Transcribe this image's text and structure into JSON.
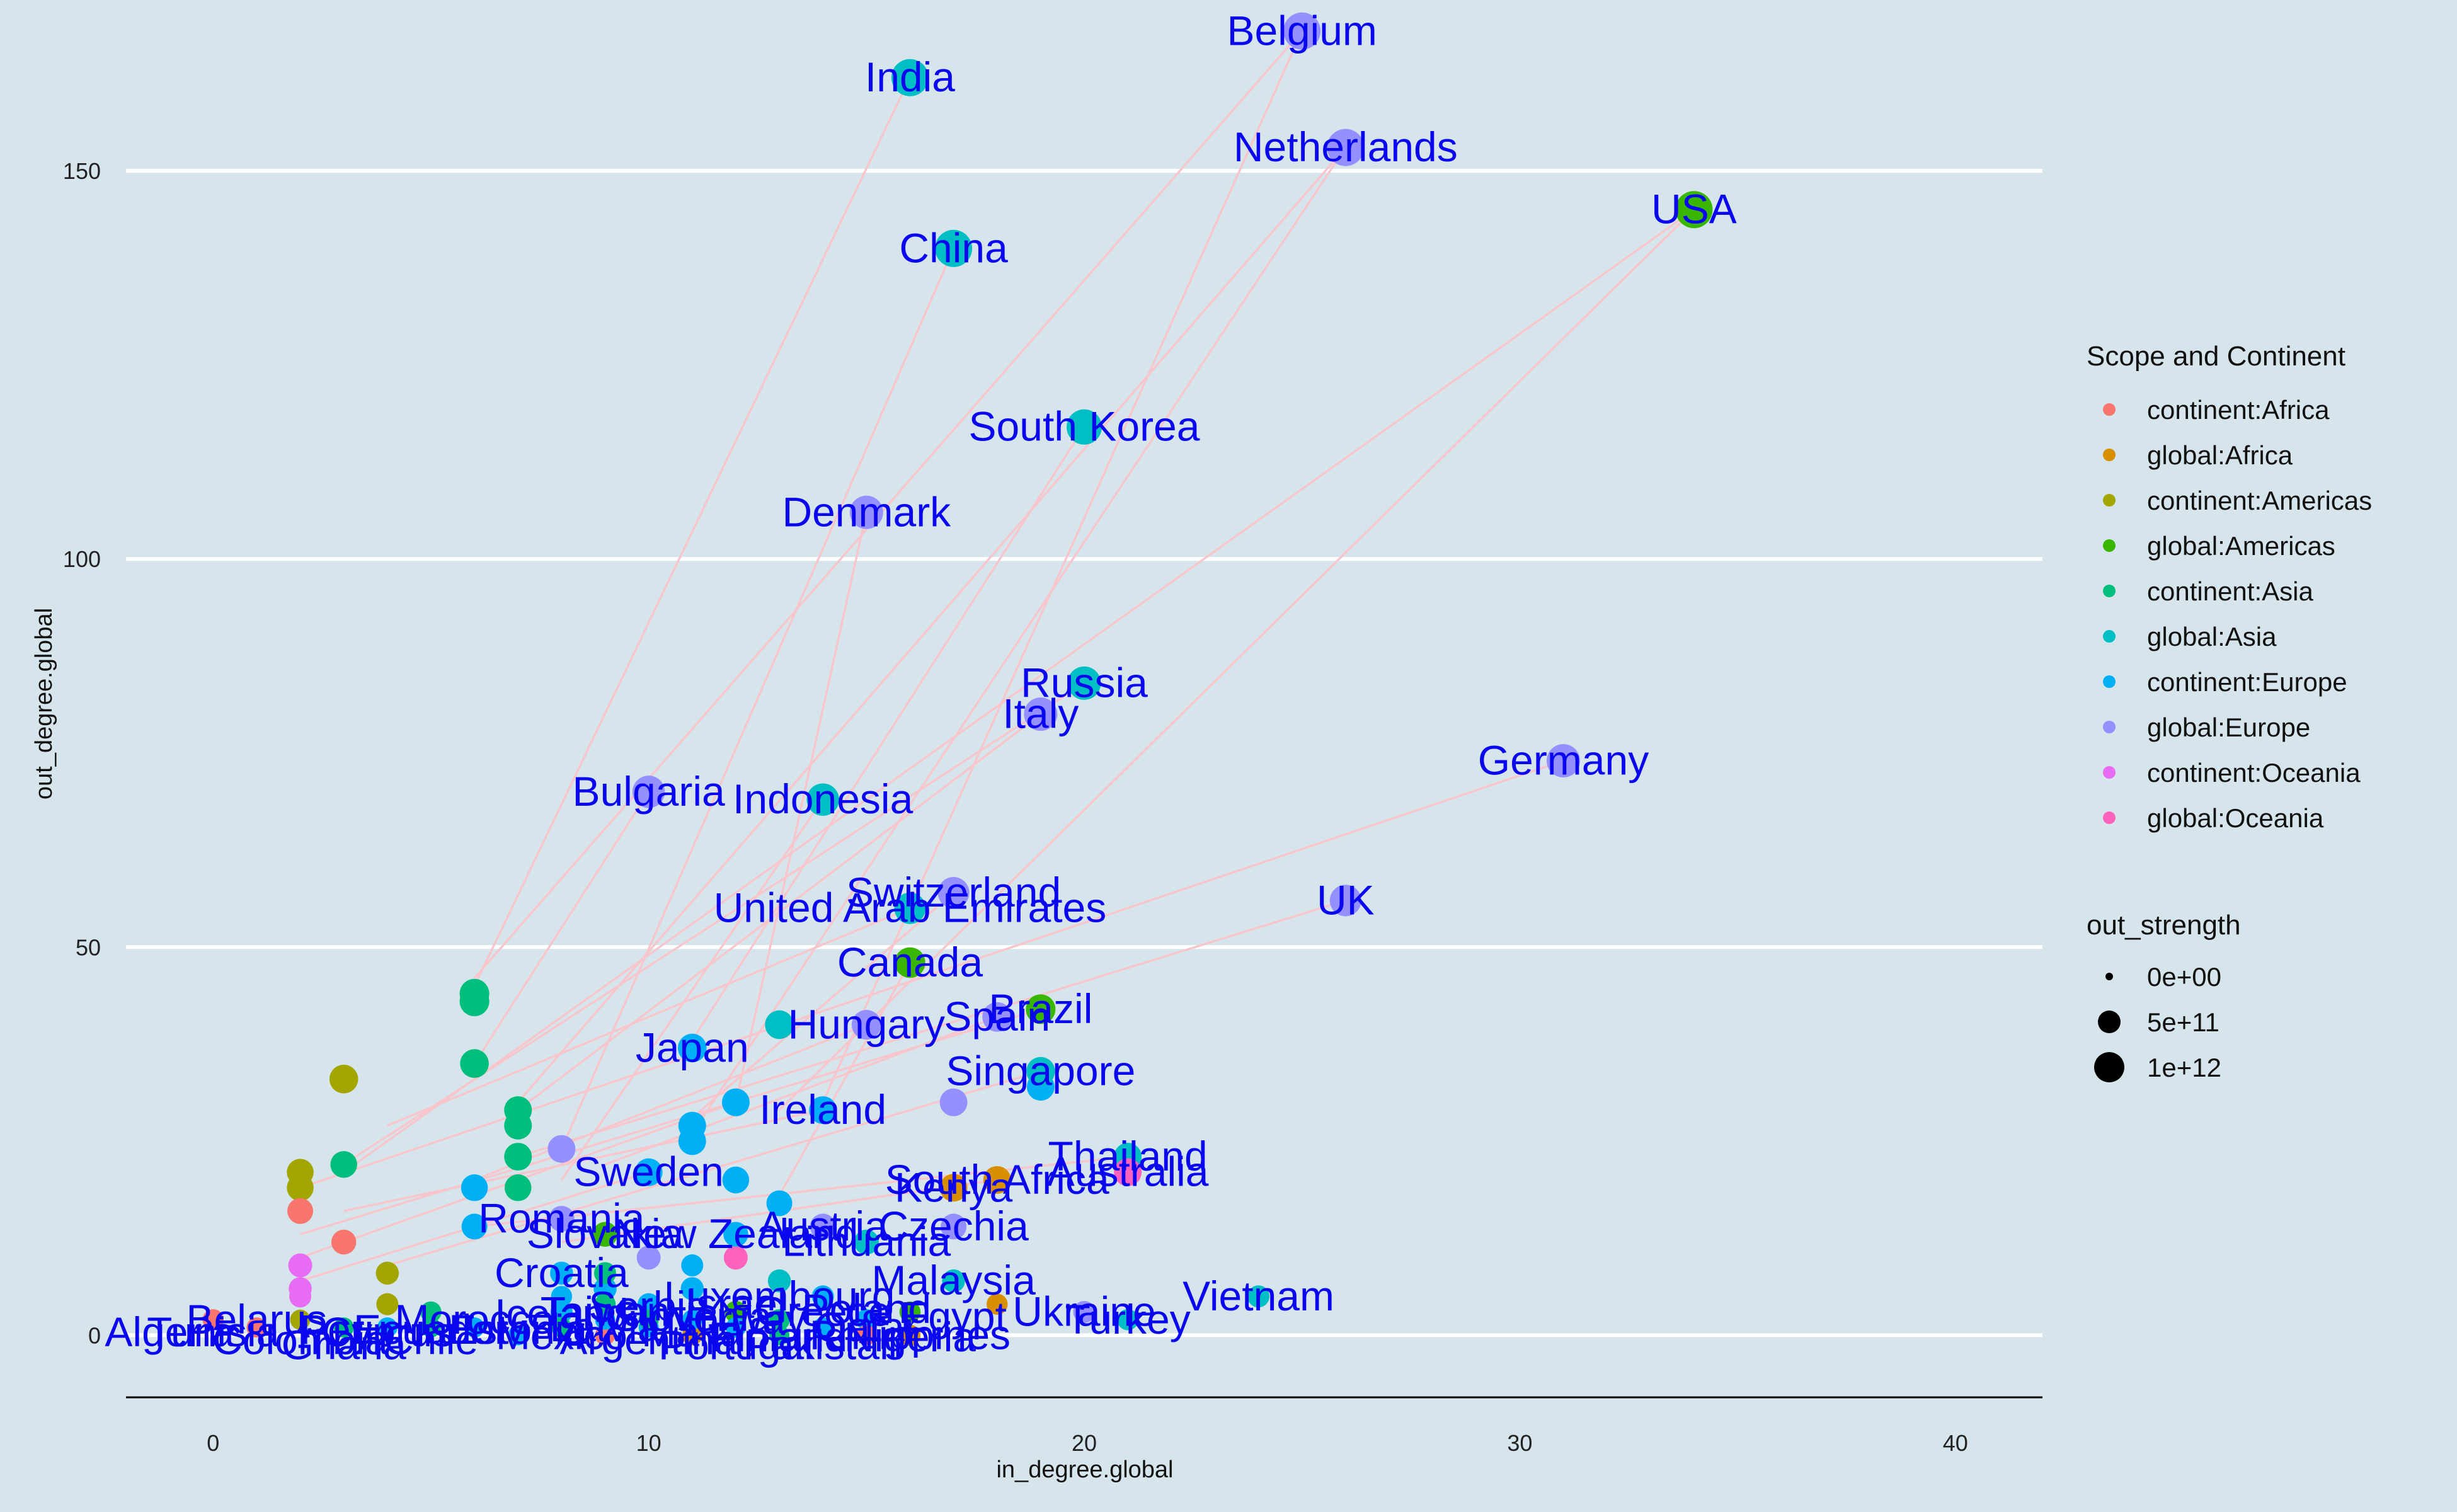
{
  "chart_data": {
    "type": "scatter",
    "xlabel": "in_degree.global",
    "ylabel": "out_degree.global",
    "xlim": [
      -2,
      42
    ],
    "ylim": [
      -8,
      172
    ],
    "x_ticks": [
      0,
      10,
      20,
      30,
      40
    ],
    "y_ticks": [
      0,
      50,
      100,
      150
    ],
    "grid": "horizontal major lines only",
    "legend_placement": "right",
    "colors": {
      "background": "#d6e5ec",
      "grid": "#ffffff",
      "edges": "#f7c6cc",
      "labels": "#0a06ee",
      "continent:Africa": "#f8766d",
      "global:Africa": "#d89000",
      "continent:Americas": "#a3a500",
      "global:Americas": "#39b600",
      "continent:Asia": "#00bf7d",
      "global:Asia": "#00bfc4",
      "continent:Europe": "#00b0f6",
      "global:Europe": "#9590ff",
      "continent:Oceania": "#e76bf3",
      "global:Oceania": "#ff62bc"
    },
    "legend_color": {
      "title": "Scope and Continent",
      "entries": [
        "continent:Africa",
        "global:Africa",
        "continent:Americas",
        "global:Americas",
        "continent:Asia",
        "global:Asia",
        "continent:Europe",
        "global:Europe",
        "continent:Oceania",
        "global:Oceania"
      ]
    },
    "legend_size": {
      "title": "out_strength",
      "entries": [
        "0e+00",
        "5e+11",
        "1e+12"
      ]
    },
    "labeled_points": [
      {
        "label": "Belgium",
        "x": 25,
        "y": 168,
        "group": "global:Europe",
        "size": 3
      },
      {
        "label": "India",
        "x": 16,
        "y": 162,
        "group": "global:Asia",
        "size": 3
      },
      {
        "label": "Netherlands",
        "x": 26,
        "y": 153,
        "group": "global:Europe",
        "size": 3
      },
      {
        "label": "USA",
        "x": 34,
        "y": 145,
        "group": "global:Americas",
        "size": 3
      },
      {
        "label": "China",
        "x": 17,
        "y": 140,
        "group": "global:Asia",
        "size": 3
      },
      {
        "label": "South Korea",
        "x": 20,
        "y": 117,
        "group": "global:Asia",
        "size": 2.8
      },
      {
        "label": "Denmark",
        "x": 15,
        "y": 106,
        "group": "global:Europe",
        "size": 2.6
      },
      {
        "label": "Russia",
        "x": 20,
        "y": 84,
        "group": "global:Asia",
        "size": 2.6
      },
      {
        "label": "Italy",
        "x": 19,
        "y": 80,
        "group": "global:Europe",
        "size": 2.6
      },
      {
        "label": "Germany",
        "x": 31,
        "y": 74,
        "group": "global:Europe",
        "size": 2.6
      },
      {
        "label": "Bulgaria",
        "x": 10,
        "y": 70,
        "group": "global:Europe",
        "size": 2.5
      },
      {
        "label": "Indonesia",
        "x": 14,
        "y": 69,
        "group": "global:Asia",
        "size": 2.5
      },
      {
        "label": "Switzerland",
        "x": 17,
        "y": 57,
        "group": "global:Europe",
        "size": 2.4
      },
      {
        "label": "United Arab Emirates",
        "x": 16,
        "y": 55,
        "group": "global:Asia",
        "size": 2.4
      },
      {
        "label": "UK",
        "x": 26,
        "y": 56,
        "group": "global:Europe",
        "size": 2.4
      },
      {
        "label": "Canada",
        "x": 16,
        "y": 48,
        "group": "global:Americas",
        "size": 2.3
      },
      {
        "label": "Brazil",
        "x": 19,
        "y": 42,
        "group": "global:Americas",
        "size": 2.2
      },
      {
        "label": "Spain",
        "x": 18,
        "y": 41,
        "group": "global:Europe",
        "size": 2.2
      },
      {
        "label": "Hungary",
        "x": 15,
        "y": 40,
        "group": "global:Europe",
        "size": 2.2
      },
      {
        "label": "Japan",
        "x": 11,
        "y": 37,
        "group": "continent:Europe",
        "size": 2.1
      },
      {
        "label": "Singapore",
        "x": 19,
        "y": 34,
        "group": "global:Asia",
        "size": 2.1
      },
      {
        "label": "Ireland",
        "x": 14,
        "y": 29,
        "group": "continent:Europe",
        "size": 2
      },
      {
        "label": "Thailand",
        "x": 21,
        "y": 23,
        "group": "global:Asia",
        "size": 2
      },
      {
        "label": "South Africa",
        "x": 18,
        "y": 20,
        "group": "global:Africa",
        "size": 2
      },
      {
        "label": "Australia",
        "x": 21,
        "y": 21,
        "group": "global:Oceania",
        "size": 2
      },
      {
        "label": "Sweden",
        "x": 10,
        "y": 21,
        "group": "continent:Europe",
        "size": 2
      },
      {
        "label": "Kenya",
        "x": 17,
        "y": 19,
        "group": "global:Africa",
        "size": 2
      },
      {
        "label": "Romania",
        "x": 8,
        "y": 15,
        "group": "global:Europe",
        "size": 1.8
      },
      {
        "label": "Austria",
        "x": 14,
        "y": 14,
        "group": "global:Europe",
        "size": 1.8
      },
      {
        "label": "Czechia",
        "x": 17,
        "y": 14,
        "group": "global:Europe",
        "size": 1.8
      },
      {
        "label": "New Zealand",
        "x": 12,
        "y": 13,
        "group": "continent:Europe",
        "size": 1.7
      },
      {
        "label": "Slovakia",
        "x": 9,
        "y": 13,
        "group": "global:Americas",
        "size": 1.7
      },
      {
        "label": "Lithuania",
        "x": 15,
        "y": 12,
        "group": "global:Asia",
        "size": 1.7
      },
      {
        "label": "Malaysia",
        "x": 17,
        "y": 7,
        "group": "global:Asia",
        "size": 1.5
      },
      {
        "label": "Croatia",
        "x": 8,
        "y": 8,
        "group": "continent:Europe",
        "size": 1.5
      },
      {
        "label": "Vietnam",
        "x": 24,
        "y": 5,
        "group": "global:Asia",
        "size": 1.4
      },
      {
        "label": "Ukraine",
        "x": 20,
        "y": 3,
        "group": "global:Europe",
        "size": 1.4
      },
      {
        "label": "Turkey",
        "x": 21,
        "y": 2,
        "group": "global:Asia",
        "size": 1.3
      },
      {
        "label": "Philippines",
        "x": 16,
        "y": 0,
        "group": "global:Africa",
        "size": 1.3
      }
    ],
    "other_points": [
      {
        "x": 6,
        "y": 44,
        "group": "continent:Asia",
        "size": 2.2
      },
      {
        "x": 6,
        "y": 43,
        "group": "continent:Asia",
        "size": 2.2
      },
      {
        "x": 6,
        "y": 35,
        "group": "continent:Asia",
        "size": 2.1
      },
      {
        "x": 3,
        "y": 33,
        "group": "continent:Americas",
        "size": 2.1
      },
      {
        "x": 7,
        "y": 29,
        "group": "continent:Asia",
        "size": 2
      },
      {
        "x": 7,
        "y": 27,
        "group": "continent:Asia",
        "size": 2
      },
      {
        "x": 11,
        "y": 27,
        "group": "continent:Europe",
        "size": 2
      },
      {
        "x": 12,
        "y": 30,
        "group": "continent:Europe",
        "size": 2
      },
      {
        "x": 11,
        "y": 25,
        "group": "continent:Europe",
        "size": 2
      },
      {
        "x": 13,
        "y": 40,
        "group": "global:Asia",
        "size": 2.1
      },
      {
        "x": 19,
        "y": 32,
        "group": "continent:Europe",
        "size": 2
      },
      {
        "x": 17,
        "y": 30,
        "group": "global:Europe",
        "size": 2
      },
      {
        "x": 8,
        "y": 24,
        "group": "global:Europe",
        "size": 2
      },
      {
        "x": 7,
        "y": 23,
        "group": "continent:Asia",
        "size": 2
      },
      {
        "x": 3,
        "y": 22,
        "group": "continent:Asia",
        "size": 1.9
      },
      {
        "x": 2,
        "y": 21,
        "group": "continent:Americas",
        "size": 1.9
      },
      {
        "x": 2,
        "y": 19,
        "group": "continent:Americas",
        "size": 1.9
      },
      {
        "x": 6,
        "y": 19,
        "group": "continent:Europe",
        "size": 1.9
      },
      {
        "x": 7,
        "y": 19,
        "group": "continent:Asia",
        "size": 1.9
      },
      {
        "x": 12,
        "y": 20,
        "group": "continent:Europe",
        "size": 1.9
      },
      {
        "x": 2,
        "y": 16,
        "group": "continent:Africa",
        "size": 1.8
      },
      {
        "x": 13,
        "y": 17,
        "group": "continent:Europe",
        "size": 1.8
      },
      {
        "x": 6,
        "y": 14,
        "group": "continent:Europe",
        "size": 1.8
      },
      {
        "x": 3,
        "y": 12,
        "group": "continent:Africa",
        "size": 1.7
      },
      {
        "x": 2,
        "y": 9,
        "group": "continent:Oceania",
        "size": 1.6
      },
      {
        "x": 4,
        "y": 8,
        "group": "continent:Americas",
        "size": 1.5
      },
      {
        "x": 12,
        "y": 10,
        "group": "global:Oceania",
        "size": 1.6
      },
      {
        "x": 10,
        "y": 10,
        "group": "global:Europe",
        "size": 1.6
      },
      {
        "x": 13,
        "y": 7,
        "group": "global:Asia",
        "size": 1.5
      },
      {
        "x": 2,
        "y": 6,
        "group": "continent:Oceania",
        "size": 1.5
      },
      {
        "x": 9,
        "y": 6,
        "group": "continent:Europe",
        "size": 1.5
      },
      {
        "x": 11,
        "y": 6,
        "group": "continent:Europe",
        "size": 1.5
      },
      {
        "x": 14,
        "y": 5,
        "group": "continent:Europe",
        "size": 1.4
      },
      {
        "x": 18,
        "y": 4,
        "group": "global:Africa",
        "size": 1.3
      },
      {
        "x": 2,
        "y": 5,
        "group": "continent:Oceania",
        "size": 1.4
      },
      {
        "x": 4,
        "y": 4,
        "group": "continent:Americas",
        "size": 1.4
      },
      {
        "x": 5,
        "y": 3,
        "group": "continent:Asia",
        "size": 1.3
      },
      {
        "x": 8,
        "y": 3,
        "group": "continent:Europe",
        "size": 1.4
      },
      {
        "x": 10,
        "y": 4,
        "group": "continent:Europe",
        "size": 1.4
      },
      {
        "x": 12,
        "y": 3,
        "group": "global:Americas",
        "size": 1.4
      },
      {
        "x": 13,
        "y": 2,
        "group": "continent:Asia",
        "size": 1.3
      },
      {
        "x": 15,
        "y": 2,
        "group": "continent:Europe",
        "size": 1.3
      },
      {
        "x": 16,
        "y": 3,
        "group": "global:Americas",
        "size": 1.3
      },
      {
        "x": 0,
        "y": 2,
        "group": "continent:Africa",
        "size": 1.3
      },
      {
        "x": 1,
        "y": 1,
        "group": "continent:Africa",
        "size": 1.2
      },
      {
        "x": 2,
        "y": 2,
        "group": "continent:Americas",
        "size": 1.2
      },
      {
        "x": 3,
        "y": 1,
        "group": "continent:Asia",
        "size": 1.2
      },
      {
        "x": 4,
        "y": 1,
        "group": "continent:Europe",
        "size": 1.2
      },
      {
        "x": 5,
        "y": 1,
        "group": "continent:Asia",
        "size": 1.2
      },
      {
        "x": 6,
        "y": 1,
        "group": "continent:Europe",
        "size": 1.2
      },
      {
        "x": 7,
        "y": 0,
        "group": "continent:Europe",
        "size": 1.2
      },
      {
        "x": 8,
        "y": 1,
        "group": "continent:Asia",
        "size": 1.2
      },
      {
        "x": 9,
        "y": 0,
        "group": "continent:Africa",
        "size": 1.2
      },
      {
        "x": 10,
        "y": 1,
        "group": "continent:Europe",
        "size": 1.2
      },
      {
        "x": 11,
        "y": 0,
        "group": "global:Africa",
        "size": 1.2
      },
      {
        "x": 12,
        "y": 1,
        "group": "continent:Europe",
        "size": 1.2
      },
      {
        "x": 13,
        "y": 0,
        "group": "continent:Asia",
        "size": 1.2
      },
      {
        "x": 14,
        "y": 1,
        "group": "continent:Europe",
        "size": 1.2
      },
      {
        "x": 15,
        "y": 0,
        "group": "continent:Africa",
        "size": 1.2
      },
      {
        "x": 9,
        "y": 2,
        "group": "continent:Europe",
        "size": 1.2
      },
      {
        "x": 10,
        "y": 2,
        "group": "continent:Asia",
        "size": 1.2
      },
      {
        "x": 11,
        "y": 2,
        "group": "continent:Europe",
        "size": 1.2
      },
      {
        "x": 8,
        "y": 5,
        "group": "continent:Europe",
        "size": 1.3
      },
      {
        "x": 9,
        "y": 8,
        "group": "continent:Asia",
        "size": 1.4
      },
      {
        "x": 11,
        "y": 9,
        "group": "continent:Europe",
        "size": 1.4
      },
      {
        "x": 9,
        "y": 4,
        "group": "continent:Asia",
        "size": 1.3
      }
    ],
    "edges": [
      [
        25,
        168,
        6,
        46
      ],
      [
        26,
        153,
        7,
        30
      ],
      [
        16,
        162,
        6,
        45
      ],
      [
        34,
        145,
        3,
        21
      ],
      [
        17,
        140,
        8,
        24
      ],
      [
        20,
        117,
        11,
        38
      ],
      [
        15,
        106,
        12,
        30
      ],
      [
        20,
        84,
        3,
        22
      ],
      [
        19,
        80,
        7,
        29
      ],
      [
        31,
        74,
        2,
        19
      ],
      [
        10,
        70,
        6,
        35
      ],
      [
        14,
        69,
        8,
        20
      ],
      [
        26,
        56,
        7,
        23
      ],
      [
        17,
        57,
        11,
        28
      ],
      [
        16,
        48,
        13,
        18
      ],
      [
        19,
        42,
        2,
        13
      ],
      [
        18,
        41,
        9,
        22
      ],
      [
        19,
        34,
        4,
        9
      ],
      [
        14,
        29,
        3,
        16
      ],
      [
        21,
        23,
        6,
        14
      ],
      [
        18,
        20,
        8,
        12
      ],
      [
        16,
        55,
        4,
        27
      ],
      [
        15,
        40,
        6,
        20
      ],
      [
        12,
        30,
        2,
        10
      ],
      [
        10,
        21,
        2,
        7
      ],
      [
        25,
        168,
        14,
        30
      ],
      [
        34,
        145,
        13,
        29
      ],
      [
        26,
        153,
        11,
        26
      ]
    ],
    "label_clutter": [
      {
        "label": "Belarus",
        "x": 1,
        "y": 2
      },
      {
        "label": "Cyprus",
        "x": 4,
        "y": 1
      },
      {
        "label": "Estonia",
        "x": 7,
        "y": 2
      },
      {
        "label": "Latvia",
        "x": 9,
        "y": 1
      },
      {
        "label": "Slovenia",
        "x": 11,
        "y": 3
      },
      {
        "label": "Portugal",
        "x": 12,
        "y": 0
      },
      {
        "label": "Greece",
        "x": 14,
        "y": 3
      },
      {
        "label": "Poland",
        "x": 15,
        "y": 4
      },
      {
        "label": "Serbia",
        "x": 10,
        "y": 5
      },
      {
        "label": "Luxembourg",
        "x": 13,
        "y": 5
      },
      {
        "label": "Malta",
        "x": 11,
        "y": 1
      },
      {
        "label": "Finland",
        "x": 13,
        "y": 1
      },
      {
        "label": "Israel",
        "x": 12,
        "y": 4
      },
      {
        "label": "Chile",
        "x": 5,
        "y": 0
      },
      {
        "label": "Peru",
        "x": 3,
        "y": 2
      },
      {
        "label": "Mexico",
        "x": 8,
        "y": 0
      },
      {
        "label": "Egypt",
        "x": 17,
        "y": 3
      },
      {
        "label": "Nigeria",
        "x": 16,
        "y": 1
      },
      {
        "label": "Morocco",
        "x": 6,
        "y": 2
      },
      {
        "label": "Argentina",
        "x": 10,
        "y": 0
      },
      {
        "label": "Pakistan",
        "x": 14,
        "y": 0
      },
      {
        "label": "Taiwan",
        "x": 9,
        "y": 3
      },
      {
        "label": "Colombia",
        "x": 2,
        "y": 0
      },
      {
        "label": "Iceland",
        "x": 8,
        "y": 4
      },
      {
        "label": "Norway",
        "x": 12,
        "y": 2
      },
      {
        "label": "Tunisia",
        "x": 0,
        "y": 1
      },
      {
        "label": "Ghana",
        "x": 3,
        "y": 0
      },
      {
        "label": "Qatar",
        "x": 15,
        "y": 1
      },
      {
        "label": "Algeria",
        "x": -1,
        "y": 1
      },
      {
        "label": "Ecuador",
        "x": 5,
        "y": 2
      }
    ]
  }
}
